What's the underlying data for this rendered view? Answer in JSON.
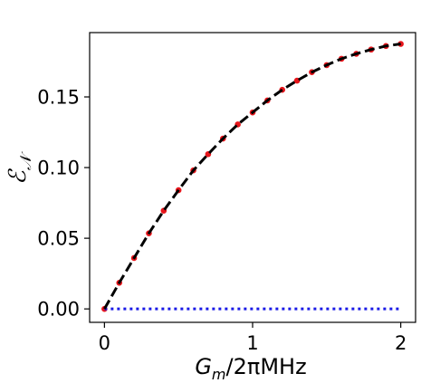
{
  "chart_data": {
    "type": "line",
    "title": "",
    "xlabel": {
      "main": "G",
      "sub": "m",
      "rest": "/2πMHz"
    },
    "ylabel": {
      "main": "ℰ",
      "sub": "𝒩"
    },
    "xlim": [
      -0.1,
      2.1
    ],
    "ylim": [
      -0.0095,
      0.1955
    ],
    "xticks": [
      0,
      1,
      2
    ],
    "xtick_labels": [
      "0",
      "1",
      "2"
    ],
    "yticks": [
      0.0,
      0.05,
      0.1,
      0.15
    ],
    "ytick_labels": [
      "0.00",
      "0.05",
      "0.10",
      "0.15"
    ],
    "grid": false,
    "series": [
      {
        "style": "dashed",
        "color": "#000000",
        "x": [
          0,
          0.1,
          0.2,
          0.3,
          0.4,
          0.5,
          0.6,
          0.7,
          0.8,
          0.9,
          1.0,
          1.1,
          1.2,
          1.3,
          1.4,
          1.5,
          1.6,
          1.7,
          1.8,
          1.9,
          2.0
        ],
        "y": [
          0.0,
          0.0185,
          0.036,
          0.0535,
          0.0695,
          0.084,
          0.098,
          0.1095,
          0.1205,
          0.1305,
          0.139,
          0.1475,
          0.155,
          0.1615,
          0.1675,
          0.1725,
          0.177,
          0.1805,
          0.1835,
          0.186,
          0.1875
        ]
      },
      {
        "style": "markers",
        "color": "#e8151b",
        "x": [
          0,
          0.1,
          0.2,
          0.3,
          0.4,
          0.5,
          0.6,
          0.7,
          0.8,
          0.9,
          1.0,
          1.1,
          1.2,
          1.3,
          1.4,
          1.5,
          1.6,
          1.7,
          1.8,
          1.9,
          2.0
        ],
        "y": [
          0.0,
          0.0185,
          0.036,
          0.0535,
          0.0695,
          0.084,
          0.098,
          0.1095,
          0.1205,
          0.1305,
          0.139,
          0.1475,
          0.155,
          0.1615,
          0.1675,
          0.1725,
          0.177,
          0.1805,
          0.1835,
          0.186,
          0.1875
        ]
      },
      {
        "style": "dotted",
        "color": "#1a1ae6",
        "x": [
          0,
          2.0
        ],
        "y": [
          0.0,
          0.0
        ]
      }
    ]
  }
}
